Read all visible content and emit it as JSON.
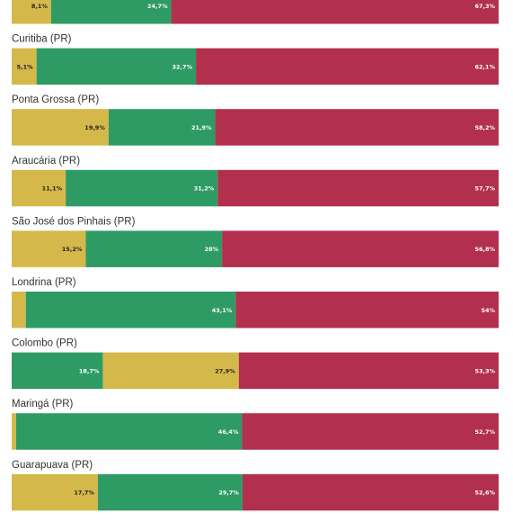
{
  "colors": {
    "yellow": "#d4b84a",
    "green": "#2e9b65",
    "red": "#b22f4d",
    "label_dark": "#222222",
    "label_light": "#ffffff",
    "city_text": "#333333"
  },
  "chart_data": {
    "type": "bar",
    "orientation": "horizontal",
    "stacked": true,
    "units": "%",
    "xlim": [
      0,
      100
    ],
    "grid": false,
    "rows": [
      {
        "label": "",
        "segments": [
          {
            "color": "yellow",
            "value": 8.1,
            "label": "8,1%"
          },
          {
            "color": "green",
            "value": 24.7,
            "label": "24,7%"
          },
          {
            "color": "red",
            "value": 67.3,
            "label": "67,3%"
          }
        ]
      },
      {
        "label": "Curitiba (PR)",
        "segments": [
          {
            "color": "yellow",
            "value": 5.1,
            "label": "5,1%"
          },
          {
            "color": "green",
            "value": 32.7,
            "label": "32,7%"
          },
          {
            "color": "red",
            "value": 62.1,
            "label": "62,1%"
          }
        ]
      },
      {
        "label": "Ponta Grossa (PR)",
        "segments": [
          {
            "color": "yellow",
            "value": 19.9,
            "label": "19,9%"
          },
          {
            "color": "green",
            "value": 21.9,
            "label": "21,9%"
          },
          {
            "color": "red",
            "value": 58.2,
            "label": "58,2%"
          }
        ]
      },
      {
        "label": "Araucária (PR)",
        "segments": [
          {
            "color": "yellow",
            "value": 11.1,
            "label": "11,1%"
          },
          {
            "color": "green",
            "value": 31.2,
            "label": "31,2%"
          },
          {
            "color": "red",
            "value": 57.7,
            "label": "57,7%"
          }
        ]
      },
      {
        "label": "São José dos Pinhais (PR)",
        "segments": [
          {
            "color": "yellow",
            "value": 15.2,
            "label": "15,2%"
          },
          {
            "color": "green",
            "value": 28,
            "label": "28%"
          },
          {
            "color": "red",
            "value": 56.8,
            "label": "56,8%"
          }
        ]
      },
      {
        "label": "Londrina (PR)",
        "segments": [
          {
            "color": "yellow",
            "value": 2.9,
            "label": ""
          },
          {
            "color": "green",
            "value": 43.1,
            "label": "43,1%"
          },
          {
            "color": "red",
            "value": 54,
            "label": "54%"
          }
        ]
      },
      {
        "label": "Colombo (PR)",
        "segments": [
          {
            "color": "green",
            "value": 18.7,
            "label": "18,7%"
          },
          {
            "color": "yellow",
            "value": 27.9,
            "label": "27,9%"
          },
          {
            "color": "red",
            "value": 53.3,
            "label": "53,3%"
          }
        ]
      },
      {
        "label": "Maringá (PR)",
        "segments": [
          {
            "color": "yellow",
            "value": 0.9,
            "label": ""
          },
          {
            "color": "green",
            "value": 46.4,
            "label": "46,4%"
          },
          {
            "color": "red",
            "value": 52.7,
            "label": "52,7%"
          }
        ]
      },
      {
        "label": "Guarapuava (PR)",
        "segments": [
          {
            "color": "yellow",
            "value": 17.7,
            "label": "17,7%"
          },
          {
            "color": "green",
            "value": 29.7,
            "label": "29,7%"
          },
          {
            "color": "red",
            "value": 52.6,
            "label": "52,6%"
          }
        ]
      }
    ]
  }
}
